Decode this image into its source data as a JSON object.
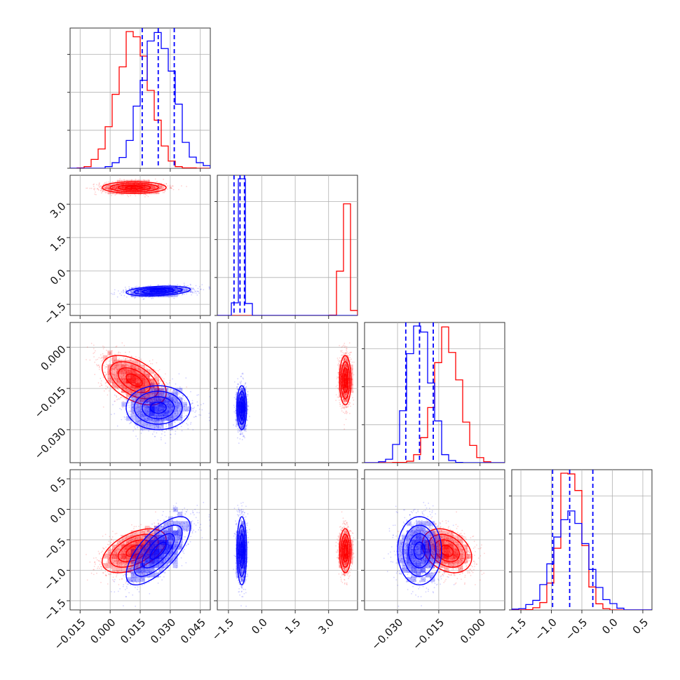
{
  "chart_data": {
    "type": "corner",
    "grid": true,
    "colors": {
      "red": "#ff0000",
      "blue": "#0000ff"
    },
    "series": [
      {
        "color": "#ff0000",
        "mean": [
          0.012,
          3.75,
          -0.012,
          -0.68
        ],
        "sd": [
          0.008,
          0.13,
          0.0045,
          0.18
        ],
        "corr": [
          [
            1,
            0,
            -0.5,
            0.5
          ],
          [
            0,
            1,
            0,
            0
          ],
          [
            -0.5,
            0,
            1,
            -0.3
          ],
          [
            0.5,
            0,
            -0.3,
            1
          ]
        ]
      },
      {
        "color": "#0000ff",
        "mean": [
          0.024,
          -0.9,
          -0.022,
          -0.68
        ],
        "sd": [
          0.008,
          0.11,
          0.004,
          0.28
        ],
        "corr": [
          [
            1,
            0.3,
            0,
            0.7
          ],
          [
            0.3,
            1,
            0,
            0
          ],
          [
            0,
            0,
            1,
            0
          ],
          [
            0.7,
            0,
            0,
            1
          ]
        ]
      }
    ],
    "parameters": [
      {
        "range": [
          -0.02,
          0.05
        ],
        "ticks": [
          -0.015,
          0.0,
          0.015,
          0.03,
          0.045
        ],
        "tick_labels": [
          "−0.015",
          "0.000",
          "0.015",
          "0.030",
          "0.045"
        ],
        "quantiles": [
          0.016,
          0.024,
          0.032
        ]
      },
      {
        "range": [
          -2.0,
          4.3
        ],
        "ticks": [
          -1.5,
          0.0,
          1.5,
          3.0
        ],
        "tick_labels": [
          "−1.5",
          "0.0",
          "1.5",
          "3.0"
        ],
        "quantiles": [
          -1.25,
          -0.98,
          -0.78
        ]
      },
      {
        "range": [
          -0.042,
          0.009
        ],
        "ticks": [
          -0.03,
          -0.015,
          0.0
        ],
        "tick_labels": [
          "−0.030",
          "−0.015",
          "0.000"
        ],
        "quantiles": [
          -0.027,
          -0.022,
          -0.017
        ]
      },
      {
        "range": [
          -1.65,
          0.65
        ],
        "ticks": [
          -1.5,
          -1.0,
          -0.5,
          0.0,
          0.5
        ],
        "tick_labels": [
          "−1.5",
          "−1.0",
          "−0.5",
          "0.0",
          "0.5"
        ],
        "quantiles": [
          -0.98,
          -0.7,
          -0.32
        ]
      }
    ]
  }
}
